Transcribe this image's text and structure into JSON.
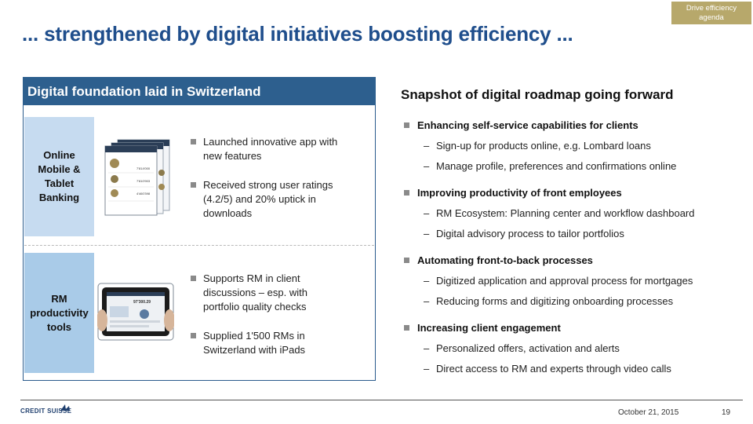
{
  "tag": {
    "line1": "Drive efficiency",
    "line2": "agenda"
  },
  "title": "... strengthened by digital initiatives boosting efficiency ...",
  "left": {
    "header": "Digital foundation laid in Switzerland",
    "sections": [
      {
        "category": [
          "Online",
          "Mobile &",
          "Tablet",
          "Banking"
        ],
        "bullets": [
          "Launched innovative app with new features",
          "Received strong user ratings (4.2/5) and 20% uptick in downloads"
        ]
      },
      {
        "category": [
          "RM",
          "productivity",
          "tools"
        ],
        "bullets": [
          "Supports RM in client discussions – esp. with portfolio quality checks",
          "Supplied 1'500 RMs in Switzerland with iPads"
        ]
      }
    ]
  },
  "right": {
    "title": "Snapshot of digital roadmap going forward",
    "groups": [
      {
        "heading": "Enhancing self-service capabilities for clients",
        "items": [
          "Sign-up for products online, e.g. Lombard loans",
          "Manage profile, preferences and confirmations online"
        ]
      },
      {
        "heading": "Improving productivity of front employees",
        "items": [
          "RM Ecosystem: Planning center and workflow dashboard",
          "Digital advisory process to tailor portfolios"
        ]
      },
      {
        "heading": "Automating front-to-back processes",
        "items": [
          "Digitized application and approval process for mortgages",
          "Reducing forms and digitizing onboarding processes"
        ]
      },
      {
        "heading": "Increasing client engagement",
        "items": [
          "Personalized offers, activation and alerts",
          "Direct access to RM and experts through video calls"
        ]
      }
    ]
  },
  "phone_screens": {
    "amount1": "7'814'000",
    "amount2": "7'810'903",
    "amount3": "4'460'398"
  },
  "tablet_screen": {
    "amount": "97'300.29"
  },
  "footer": {
    "logo": "CREDIT SUISSE",
    "date": "October 21, 2015",
    "page": "19"
  },
  "colors": {
    "brand_blue": "#2d5f8e",
    "title_blue": "#1f4e8c",
    "tag_gold": "#b7a86b"
  }
}
